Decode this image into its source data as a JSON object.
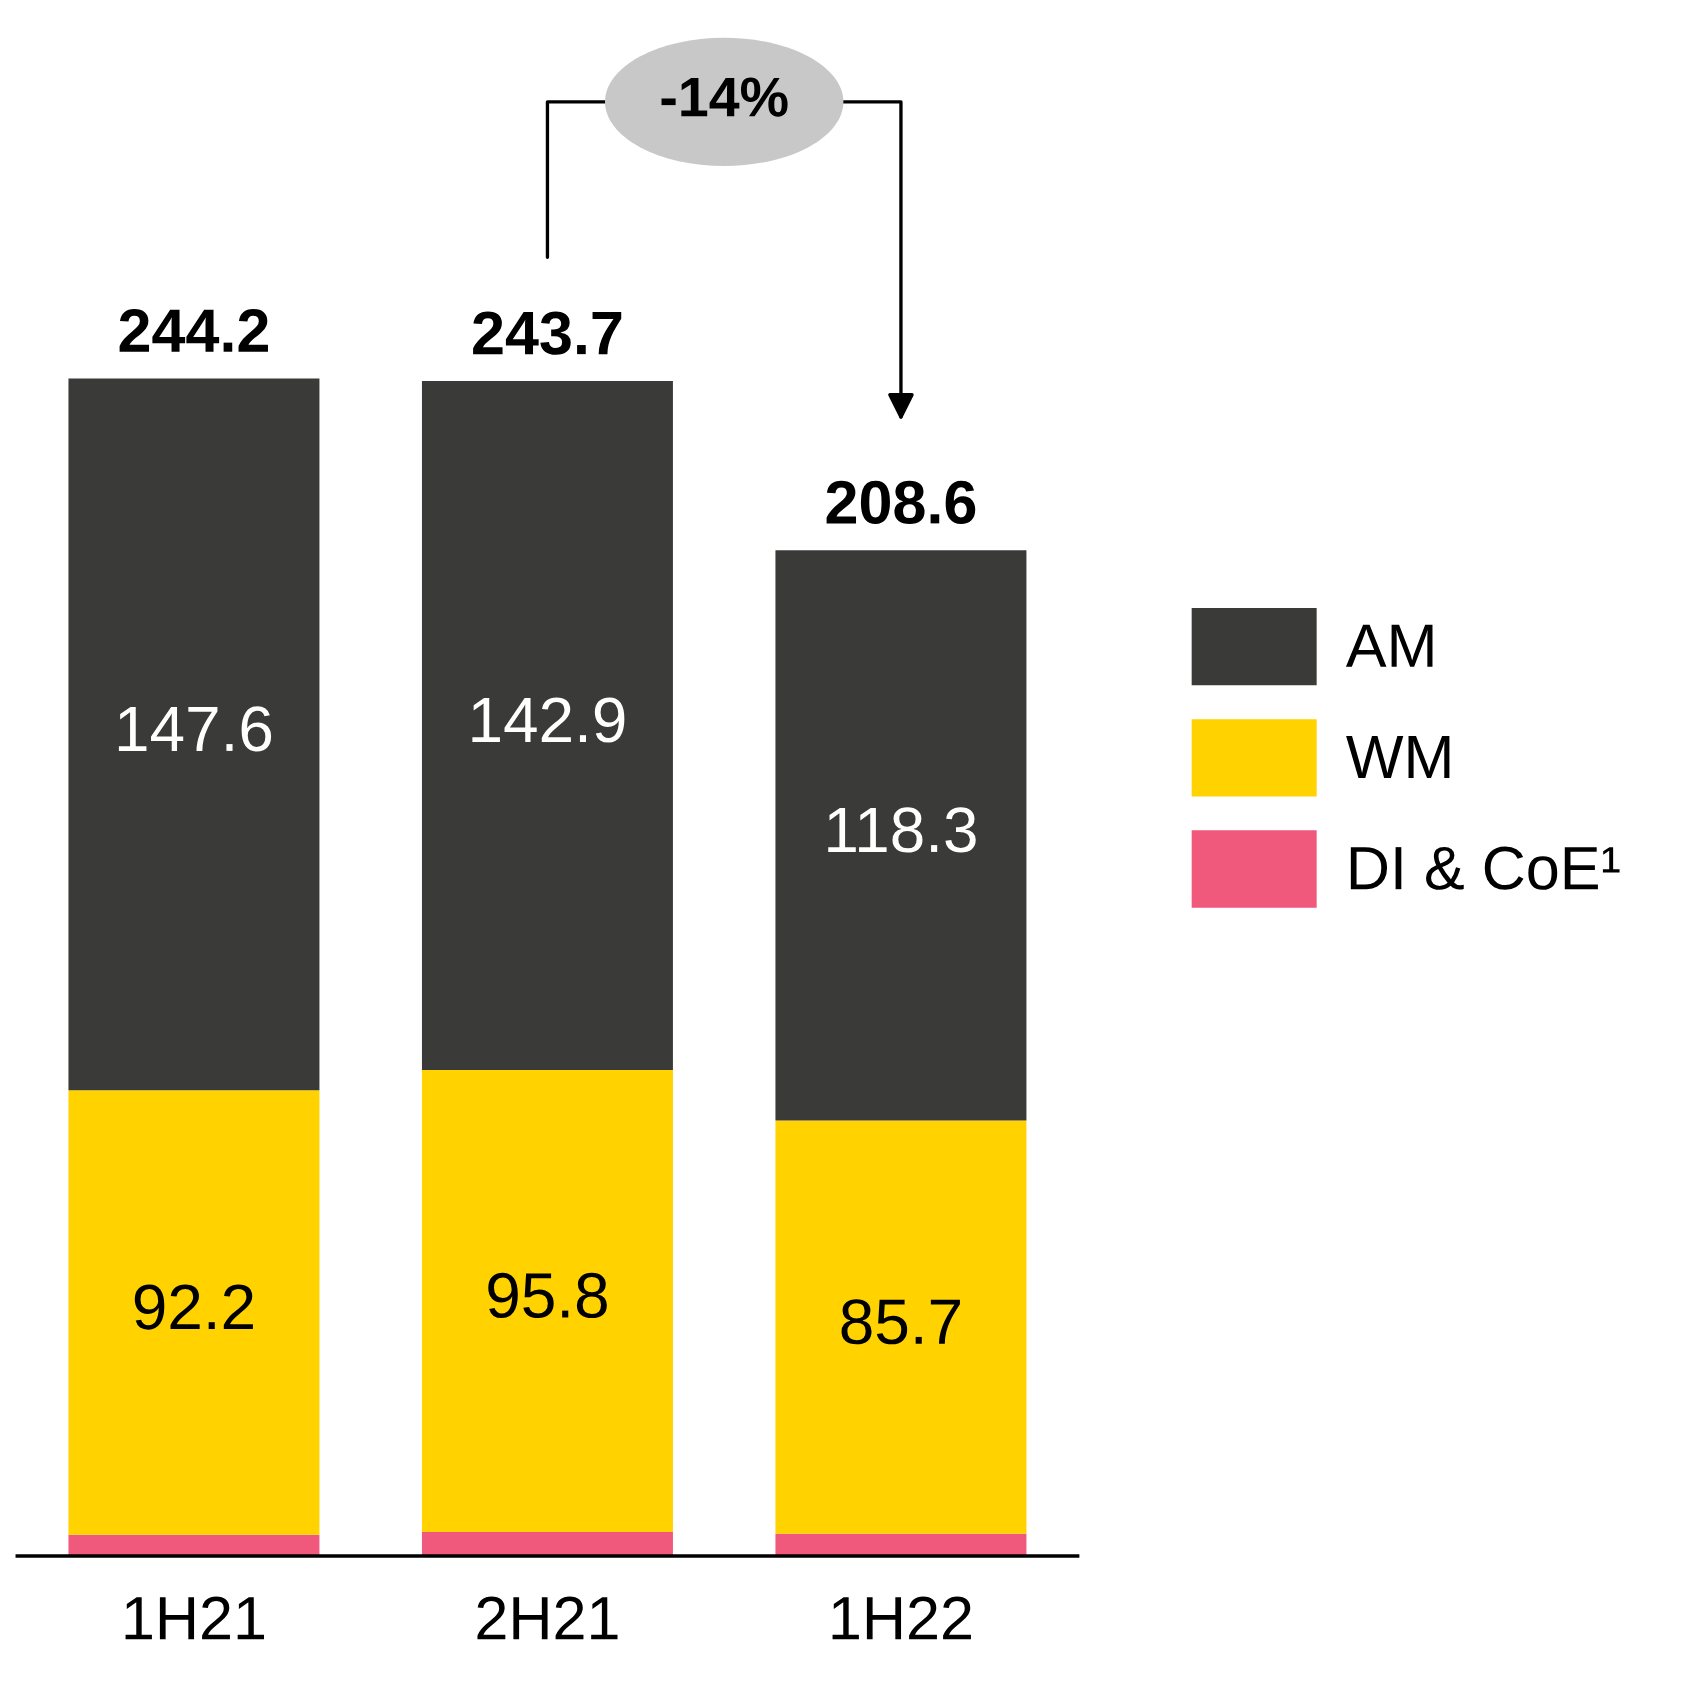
{
  "chart_data": {
    "type": "bar",
    "stacked": true,
    "categories": [
      "1H21",
      "2H21",
      "1H22"
    ],
    "series": [
      {
        "name": "DI & CoE¹",
        "color": "#f0587c",
        "values": [
          4.4,
          5.0,
          4.6
        ]
      },
      {
        "name": "WM",
        "color": "#ffd200",
        "values": [
          92.2,
          95.8,
          85.7
        ],
        "value_labels": [
          "92.2",
          "95.8",
          "85.7"
        ]
      },
      {
        "name": "AM",
        "color": "#3a3b38",
        "values": [
          147.6,
          142.9,
          118.3
        ],
        "value_labels": [
          "147.6",
          "142.9",
          "118.3"
        ]
      }
    ],
    "totals": [
      "244.2",
      "243.7",
      "208.6"
    ],
    "annotations": [
      "-14%"
    ],
    "legend": "right",
    "grid": false
  }
}
